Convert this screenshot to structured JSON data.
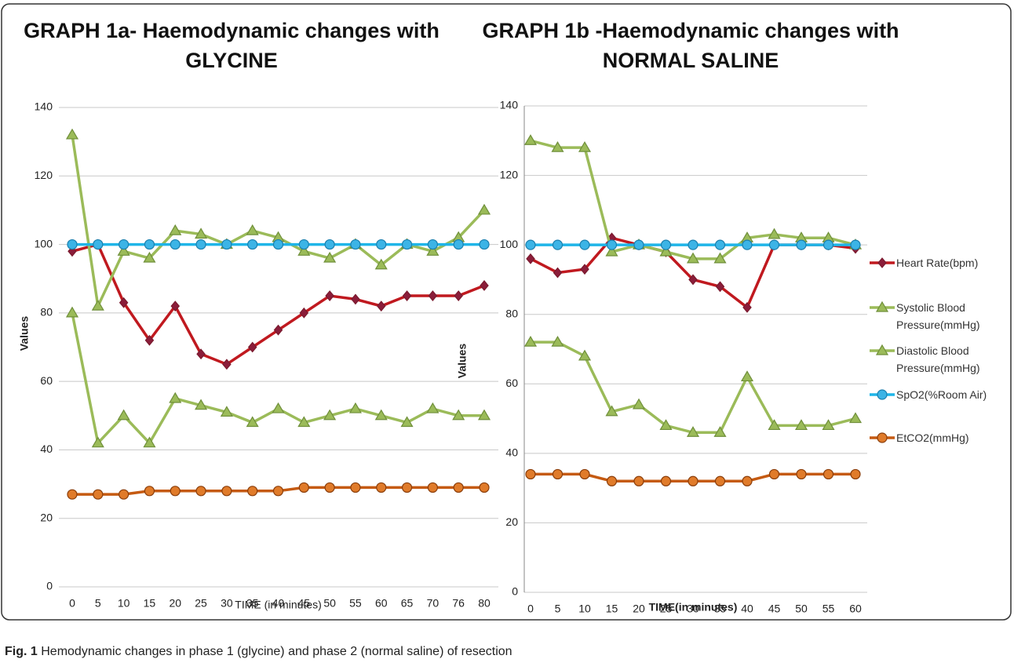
{
  "chart_data": [
    {
      "type": "line",
      "title": "GRAPH 1a- Haemodynamic changes with GLYCINE",
      "ylabel": "Values",
      "xlabel": "TIME (in minutes)",
      "categories": [
        "0",
        "5",
        "10",
        "15",
        "20",
        "25",
        "30",
        "35",
        "40",
        "45",
        "50",
        "55",
        "60",
        "65",
        "70",
        "76",
        "80"
      ],
      "ylim": [
        0,
        140
      ],
      "yticks": [
        0,
        20,
        40,
        60,
        80,
        100,
        120,
        140
      ],
      "grid": true,
      "series": [
        {
          "color": "#c0191f",
          "marker": "diamond",
          "values": [
            98,
            100,
            83,
            72,
            82,
            68,
            65,
            70,
            75,
            80,
            85,
            84,
            82,
            85,
            85,
            85,
            88
          ]
        },
        {
          "color": "#9bbb59",
          "marker": "triangle",
          "values": [
            132,
            82,
            98,
            96,
            104,
            103,
            100,
            104,
            102,
            98,
            96,
            100,
            94,
            100,
            98,
            102,
            110
          ]
        },
        {
          "color": "#9bbb59",
          "marker": "triangle",
          "values": [
            80,
            42,
            50,
            42,
            55,
            53,
            51,
            48,
            52,
            48,
            50,
            52,
            50,
            48,
            52,
            50,
            50
          ]
        },
        {
          "color": "#1fb5e8",
          "marker": "circle",
          "values": [
            100,
            100,
            100,
            100,
            100,
            100,
            100,
            100,
            100,
            100,
            100,
            100,
            100,
            100,
            100,
            100,
            100
          ]
        },
        {
          "color": "#c55a11",
          "marker": "circle",
          "values": [
            27,
            27,
            27,
            28,
            28,
            28,
            28,
            28,
            28,
            29,
            29,
            29,
            29,
            29,
            29,
            29,
            29
          ]
        }
      ]
    },
    {
      "type": "line",
      "title": "GRAPH 1b -Haemodynamic changes with NORMAL SALINE",
      "ylabel": "Values",
      "xlabel": "TIME(in minutes)",
      "categories": [
        "0",
        "5",
        "10",
        "15",
        "20",
        "25",
        "30",
        "35",
        "40",
        "45",
        "50",
        "55",
        "60"
      ],
      "ylim": [
        0,
        140
      ],
      "yticks": [
        0,
        20,
        40,
        60,
        80,
        100,
        120,
        140
      ],
      "grid": true,
      "legend": "right",
      "series": [
        {
          "name": "Heart Rate(bpm)",
          "color": "#c0191f",
          "marker": "diamond",
          "values": [
            96,
            92,
            93,
            102,
            100,
            98,
            90,
            88,
            82,
            100,
            100,
            100,
            99
          ]
        },
        {
          "name": "Systolic Blood Pressure(mmHg)",
          "color": "#9bbb59",
          "marker": "triangle",
          "values": [
            130,
            128,
            128,
            98,
            100,
            98,
            96,
            96,
            102,
            103,
            102,
            102,
            100
          ]
        },
        {
          "name": "Diastolic Blood Pressure(mmHg)",
          "color": "#9bbb59",
          "marker": "triangle",
          "values": [
            72,
            72,
            68,
            52,
            54,
            48,
            46,
            46,
            62,
            48,
            48,
            48,
            50
          ]
        },
        {
          "name": "SpO2(%Room Air)",
          "color": "#1fb5e8",
          "marker": "circle",
          "values": [
            100,
            100,
            100,
            100,
            100,
            100,
            100,
            100,
            100,
            100,
            100,
            100,
            100
          ]
        },
        {
          "name": "EtCO2(mmHg)",
          "color": "#c55a11",
          "marker": "circle",
          "values": [
            34,
            34,
            34,
            32,
            32,
            32,
            32,
            32,
            32,
            34,
            34,
            34,
            34
          ]
        }
      ]
    }
  ],
  "caption": {
    "label": "Fig. 1",
    "text": "Hemodynamic changes in phase 1 (glycine) and phase 2 (normal saline) of resection"
  }
}
